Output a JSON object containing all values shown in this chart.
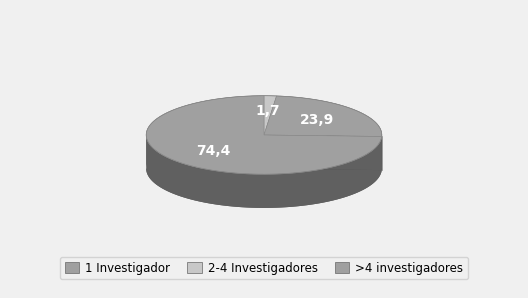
{
  "values": [
    23.9,
    1.7,
    74.4
  ],
  "labels": [
    "23,9",
    "1,7",
    "74,4"
  ],
  "legend_labels": [
    "1 Investigador",
    "2-4 Investigadores",
    ">4 investigadores"
  ],
  "colors_top": [
    "#a0a0a0",
    "#c8c8c8",
    "#a0a0a0"
  ],
  "colors_side": [
    "#505050",
    "#909090",
    "#606060"
  ],
  "background_color": "#f0f0f0",
  "label_fontsize": 10,
  "legend_fontsize": 8.5
}
